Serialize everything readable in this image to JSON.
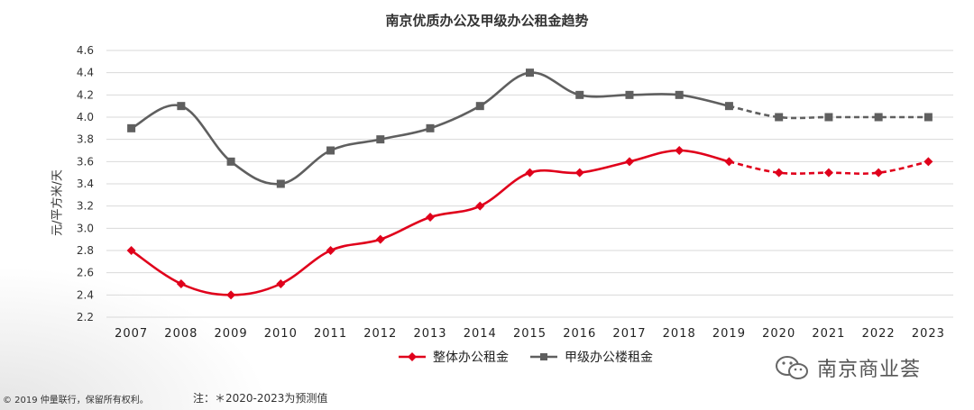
{
  "chart_data": {
    "type": "line",
    "title": "南京优质办公及甲级办公租金趋势",
    "ylabel": "元/平方米/天",
    "xlabel": "",
    "categories": [
      "2007",
      "2008",
      "2009",
      "2010",
      "2011",
      "2012",
      "2013",
      "2014",
      "2015",
      "2016",
      "2017",
      "2018",
      "2019",
      "2020",
      "2021",
      "2022",
      "2023"
    ],
    "ylim": [
      2.2,
      4.6
    ],
    "ytick_labels": [
      "2.2",
      "2.4",
      "2.6",
      "2.8",
      "3.0",
      "3.2",
      "3.4",
      "3.6",
      "3.8",
      "4.0",
      "4.2",
      "4.4",
      "4.6"
    ],
    "grid": true,
    "legend_position": "bottom",
    "forecast_start": "2019",
    "series": [
      {
        "name": "整体办公租金",
        "color": "#e0001b",
        "marker": "diamond",
        "values": [
          2.8,
          2.5,
          2.4,
          2.5,
          2.8,
          2.9,
          3.1,
          3.2,
          3.5,
          3.5,
          3.6,
          3.7,
          3.6,
          3.5,
          3.5,
          3.5,
          3.6
        ]
      },
      {
        "name": "甲级办公楼租金",
        "color": "#5f5f5f",
        "marker": "square",
        "values": [
          3.9,
          4.1,
          3.6,
          3.4,
          3.7,
          3.8,
          3.9,
          4.1,
          4.4,
          4.2,
          4.2,
          4.2,
          4.1,
          4.0,
          4.0,
          4.0,
          4.0
        ]
      }
    ]
  },
  "footer": {
    "copyright": "© 2019 仲量联行，保留所有权利。",
    "note": "注：＊2020-2023为预测值"
  },
  "watermark": {
    "text": "南京商业荟",
    "icon": "wechat-icon"
  }
}
